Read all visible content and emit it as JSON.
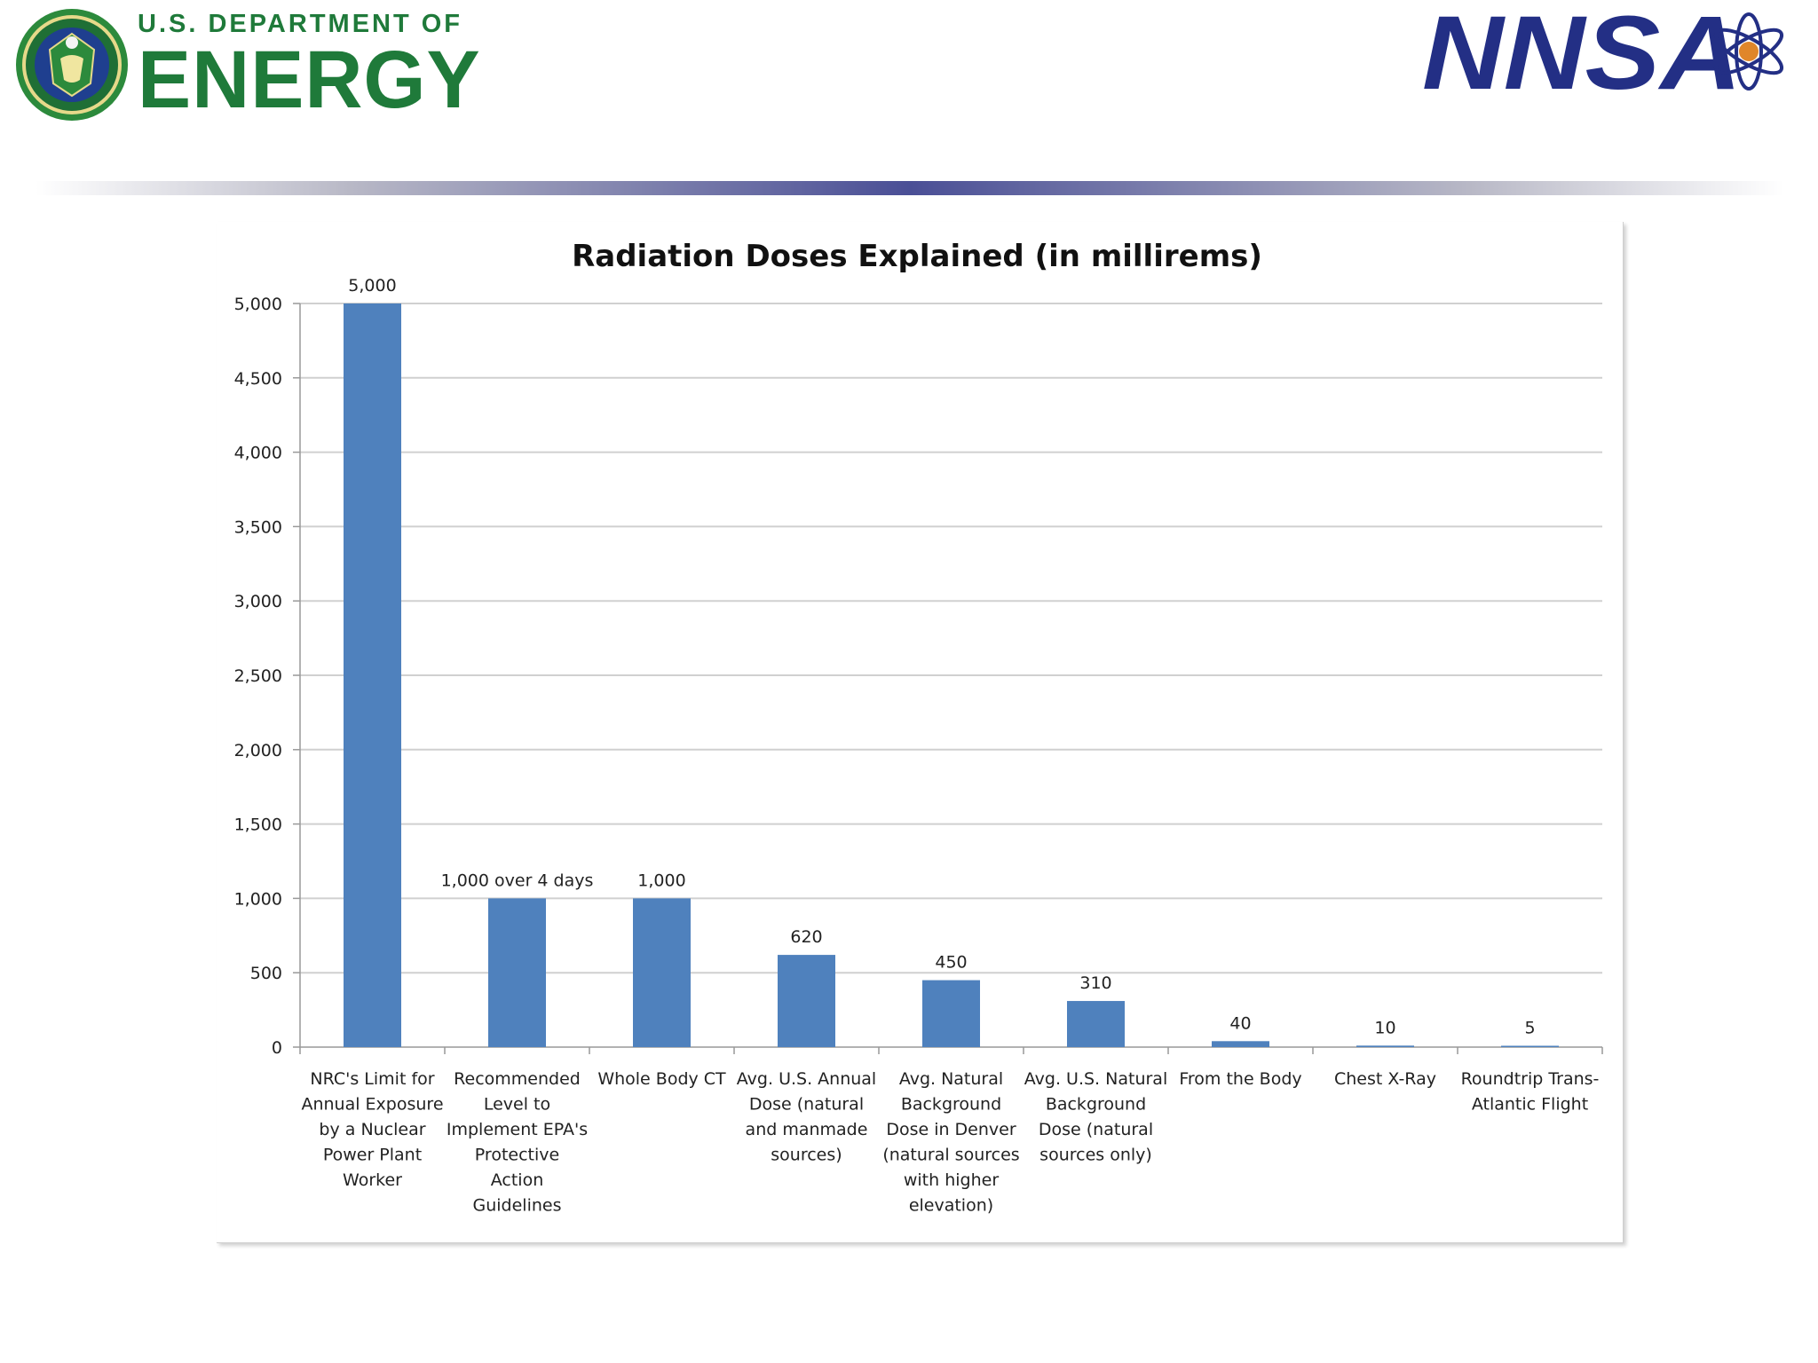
{
  "header": {
    "doe_line1": "U.S. DEPARTMENT OF",
    "doe_line2": "ENERGY",
    "nnsa": "NNSA"
  },
  "colors": {
    "doe_green": "#1f7a3a",
    "nnsa_navy": "#232f85",
    "bar": "#4f81bd",
    "gridline": "#d0d0d0"
  },
  "chart_data": {
    "type": "bar",
    "title": "Radiation Doses Explained (in millirems)",
    "xlabel": "",
    "ylabel": "",
    "ylim": [
      0,
      5000
    ],
    "yticks": [
      0,
      500,
      1000,
      1500,
      2000,
      2500,
      3000,
      3500,
      4000,
      4500,
      5000
    ],
    "ytick_labels": [
      "0",
      "500",
      "1,000",
      "1,500",
      "2,000",
      "2,500",
      "3,000",
      "3,500",
      "4,000",
      "4,500",
      "5,000"
    ],
    "grid": true,
    "categories": [
      [
        "NRC's Limit for",
        "Annual Exposure",
        "by a Nuclear",
        "Power Plant",
        "Worker"
      ],
      [
        "Recommended",
        "Level to",
        "Implement EPA's",
        "Protective",
        "Action",
        "Guidelines"
      ],
      [
        "Whole Body CT"
      ],
      [
        "Avg. U.S. Annual",
        "Dose (natural",
        "and manmade",
        "sources)"
      ],
      [
        "Avg. Natural",
        "Background",
        "Dose in Denver",
        "(natural sources",
        "with higher",
        "elevation)"
      ],
      [
        "Avg. U.S. Natural",
        "Background",
        "Dose (natural",
        "sources only)"
      ],
      [
        "From the Body"
      ],
      [
        "Chest X-Ray"
      ],
      [
        "Roundtrip Trans-",
        "Atlantic Flight"
      ]
    ],
    "values": [
      5000,
      1000,
      1000,
      620,
      450,
      310,
      40,
      10,
      5
    ],
    "data_labels": [
      "5,000",
      "1,000 over 4 days",
      "1,000",
      "620",
      "450",
      "310",
      "40",
      "10",
      "5"
    ]
  }
}
